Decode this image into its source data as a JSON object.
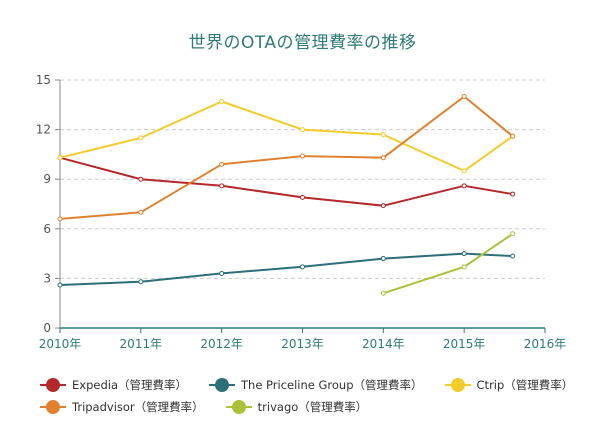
{
  "chart_data": {
    "type": "line",
    "title": "世界のOTAの管理費率の推移",
    "x_categories": [
      "2010年",
      "2011年",
      "2012年",
      "2013年",
      "2014年",
      "2015年",
      "2016年"
    ],
    "y_ticks": [
      "0",
      "3",
      "6",
      "9",
      "12",
      "15"
    ],
    "ylim": [
      0,
      15
    ],
    "grid": true,
    "legend_position": "bottom",
    "series": [
      {
        "name": "Expedia（管理費率）",
        "color": "#b5282c",
        "points": [
          [
            2010,
            10.3
          ],
          [
            2011,
            9.0
          ],
          [
            2012,
            8.6
          ],
          [
            2013,
            7.9
          ],
          [
            2014,
            7.4
          ],
          [
            2015,
            8.6
          ],
          [
            2015.6,
            8.1
          ]
        ]
      },
      {
        "name": "The Priceline Group（管理費率）",
        "color": "#2d6e78",
        "points": [
          [
            2010,
            2.6
          ],
          [
            2011,
            2.8
          ],
          [
            2012,
            3.3
          ],
          [
            2013,
            3.7
          ],
          [
            2014,
            4.2
          ],
          [
            2015,
            4.5
          ],
          [
            2015.6,
            4.35
          ]
        ]
      },
      {
        "name": "Ctrip（管理費率）",
        "color": "#f2cc2b",
        "points": [
          [
            2010,
            10.3
          ],
          [
            2011,
            11.5
          ],
          [
            2012,
            13.7
          ],
          [
            2013,
            12.0
          ],
          [
            2014,
            11.7
          ],
          [
            2015,
            9.5
          ],
          [
            2015.6,
            11.6
          ]
        ]
      },
      {
        "name": "Tripadvisor（管理費率）",
        "color": "#e0812f",
        "points": [
          [
            2010,
            6.6
          ],
          [
            2011,
            7.0
          ],
          [
            2012,
            9.9
          ],
          [
            2013,
            10.4
          ],
          [
            2014,
            10.3
          ],
          [
            2015,
            14.0
          ],
          [
            2015.6,
            11.6
          ]
        ]
      },
      {
        "name": "trivago（管理費率）",
        "color": "#a9c23a",
        "points": [
          [
            2014,
            2.1
          ],
          [
            2015,
            3.7
          ],
          [
            2015.6,
            5.7
          ]
        ]
      }
    ]
  }
}
